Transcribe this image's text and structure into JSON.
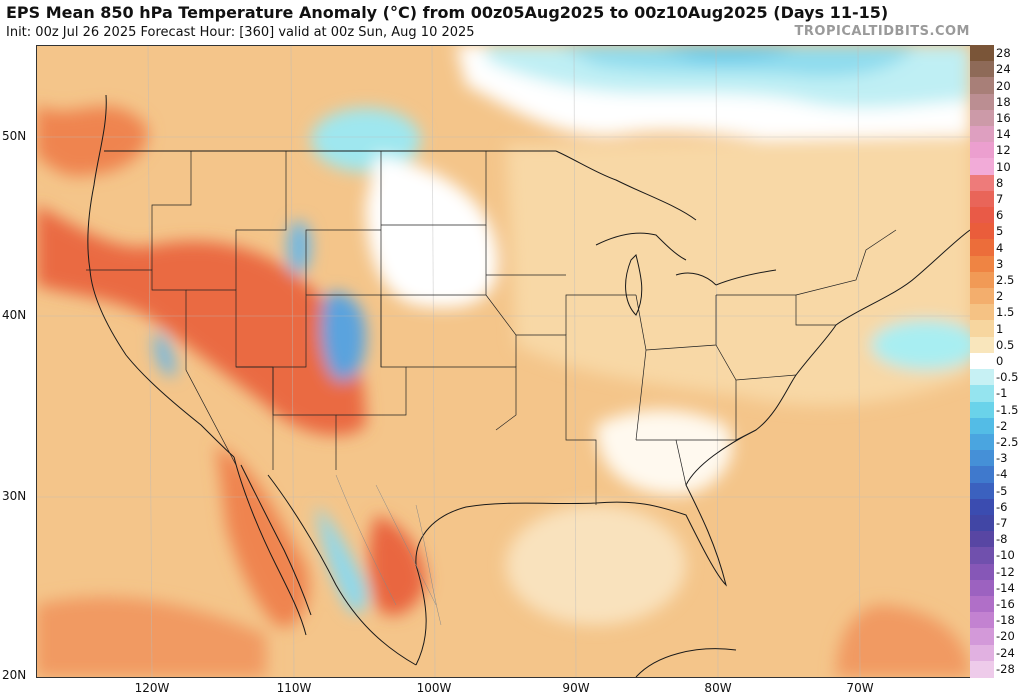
{
  "header": {
    "title": "EPS Mean 850 hPa Temperature Anomaly (°C) from 00z05Aug2025 to 00z10Aug2025 (Days 11-15)",
    "subtitle": "Init: 00z Jul 26 2025   Forecast Hour: [360]   valid at 00z Sun, Aug 10 2025",
    "brand": "TROPICALTIDBITS.COM"
  },
  "axes": {
    "lat_labels": [
      "50N",
      "40N",
      "30N",
      "20N"
    ],
    "lon_labels": [
      "120W",
      "110W",
      "100W",
      "90W",
      "80W",
      "70W"
    ]
  },
  "colorbar": {
    "labels": [
      "28",
      "24",
      "20",
      "18",
      "16",
      "14",
      "12",
      "10",
      "8",
      "7",
      "6",
      "5",
      "4",
      "3",
      "2.5",
      "2",
      "1.5",
      "1",
      "0.5",
      "0",
      "-0.5",
      "-1",
      "-1.5",
      "-2",
      "-2.5",
      "-3",
      "-4",
      "-5",
      "-6",
      "-7",
      "-8",
      "-10",
      "-12",
      "-14",
      "-16",
      "-18",
      "-20",
      "-24",
      "-28"
    ],
    "colors": [
      "#7a5538",
      "#8e6a58",
      "#a87f78",
      "#bb8e92",
      "#cc9aa8",
      "#de9fc0",
      "#ec9fcf",
      "#f2abd8",
      "#ee7b7a",
      "#e96559",
      "#e95a47",
      "#ea5d3b",
      "#ec6d3a",
      "#ef8443",
      "#f19a56",
      "#f3ae6d",
      "#f5c284",
      "#f7d69f",
      "#f9e6bc",
      "#ffffff",
      "#c7f1f4",
      "#95e4ef",
      "#6ad3ea",
      "#53bce6",
      "#4aa5e0",
      "#4590d7",
      "#3f79cd",
      "#3b61bf",
      "#3b4cb0",
      "#4146a5",
      "#5846a3",
      "#7050ad",
      "#8657b7",
      "#9c62c0",
      "#b06fc8",
      "#c382d1",
      "#d399d9",
      "#e1b1e1",
      "#eecbea"
    ]
  }
}
